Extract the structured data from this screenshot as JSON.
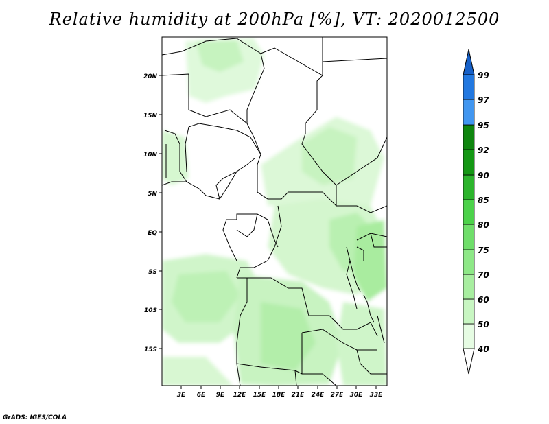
{
  "title": "Relative humidity at 200hPa [%], VT: 2020012500",
  "credit": "GrADS: IGES/COLA",
  "map": {
    "lon_range": [
      0,
      34
    ],
    "lat_range": [
      -20,
      25
    ],
    "lon_ticks": [
      "3E",
      "6E",
      "9E",
      "12E",
      "15E",
      "18E",
      "21E",
      "24E",
      "27E",
      "30E",
      "33E"
    ],
    "lat_ticks": [
      "20N",
      "15N",
      "10N",
      "5N",
      "EQ",
      "5S",
      "10S",
      "15S"
    ],
    "land_color": "#ffffff",
    "border_color": "#000000"
  },
  "colorbar": {
    "levels": [
      "40",
      "50",
      "60",
      "70",
      "75",
      "80",
      "85",
      "90",
      "92",
      "95",
      "97",
      "99"
    ],
    "colors": [
      "#ffffff",
      "#e6fce3",
      "#c8f6c2",
      "#a8eea0",
      "#8ee887",
      "#6fde6a",
      "#4cd24a",
      "#2cb52c",
      "#149814",
      "#4196f0",
      "#2278e0",
      "#1660c8"
    ]
  }
}
